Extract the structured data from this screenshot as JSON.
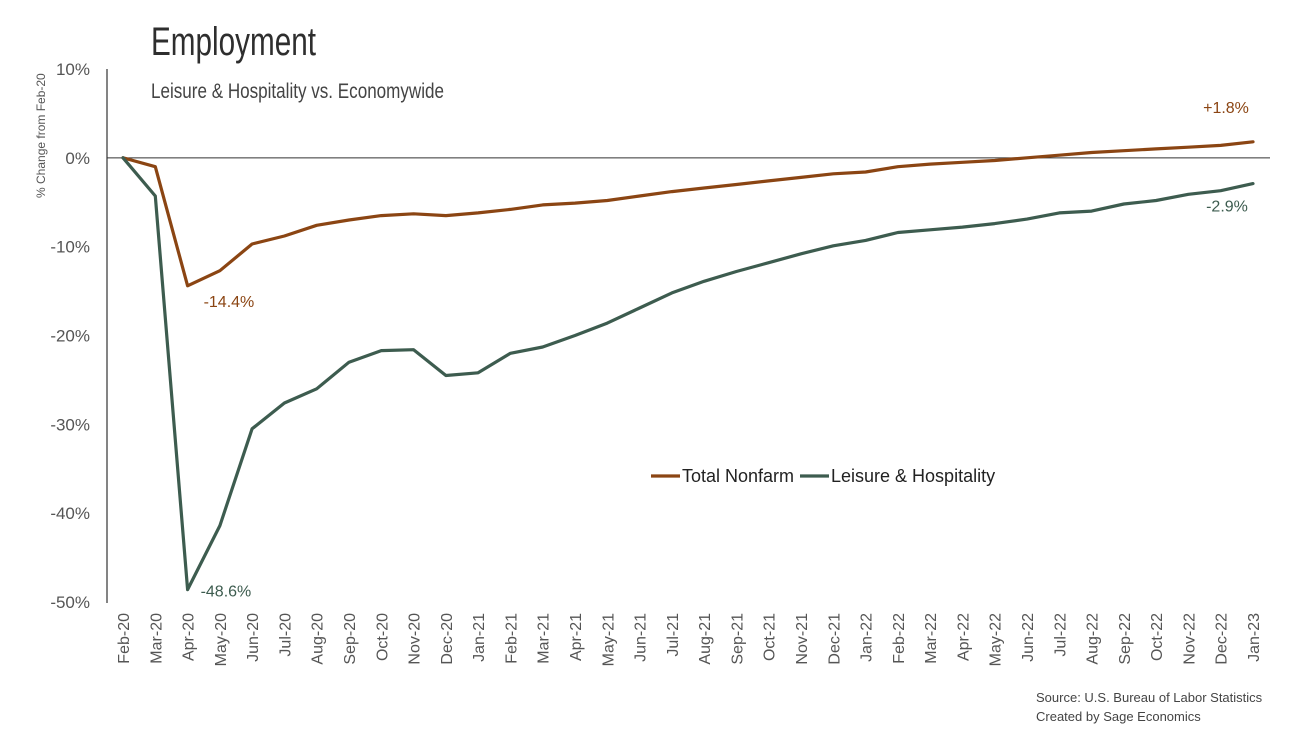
{
  "chart_data": {
    "type": "line",
    "title": "Employment",
    "subtitle": "Leisure & Hospitality vs. Economywide",
    "ylabel": "% Change from Feb-20",
    "xlabel": "",
    "ylim": [
      -50,
      10
    ],
    "yticks": [
      10,
      0,
      -10,
      -20,
      -30,
      -40,
      -50
    ],
    "ytick_labels": [
      "10%",
      "0%",
      "-10%",
      "-20%",
      "-30%",
      "-40%",
      "-50%"
    ],
    "grid": false,
    "legend_position": "center-right",
    "categories": [
      "Feb-20",
      "Mar-20",
      "Apr-20",
      "May-20",
      "Jun-20",
      "Jul-20",
      "Aug-20",
      "Sep-20",
      "Oct-20",
      "Nov-20",
      "Dec-20",
      "Jan-21",
      "Feb-21",
      "Mar-21",
      "Apr-21",
      "May-21",
      "Jun-21",
      "Jul-21",
      "Aug-21",
      "Sep-21",
      "Oct-21",
      "Nov-21",
      "Dec-21",
      "Jan-22",
      "Feb-22",
      "Mar-22",
      "Apr-22",
      "May-22",
      "Jun-22",
      "Jul-22",
      "Aug-22",
      "Sep-22",
      "Oct-22",
      "Nov-22",
      "Dec-22",
      "Jan-23"
    ],
    "series": [
      {
        "name": "Total Nonfarm",
        "color": "#8b4513",
        "values": [
          0.0,
          -1.0,
          -14.4,
          -12.7,
          -9.7,
          -8.8,
          -7.6,
          -7.0,
          -6.5,
          -6.3,
          -6.5,
          -6.2,
          -5.8,
          -5.3,
          -5.1,
          -4.8,
          -4.3,
          -3.8,
          -3.4,
          -3.0,
          -2.6,
          -2.2,
          -1.8,
          -1.6,
          -1.0,
          -0.7,
          -0.5,
          -0.3,
          0.0,
          0.3,
          0.6,
          0.8,
          1.0,
          1.2,
          1.4,
          1.8
        ]
      },
      {
        "name": "Leisure & Hospitality",
        "color": "#3d5c4f",
        "values": [
          0.0,
          -4.3,
          -48.6,
          -41.4,
          -30.5,
          -27.6,
          -26.0,
          -23.0,
          -21.7,
          -21.6,
          -24.5,
          -24.2,
          -22.0,
          -21.3,
          -20.0,
          -18.6,
          -16.9,
          -15.2,
          -13.9,
          -12.8,
          -11.8,
          -10.8,
          -9.9,
          -9.3,
          -8.4,
          -8.1,
          -7.8,
          -7.4,
          -6.9,
          -6.2,
          -6.0,
          -5.2,
          -4.8,
          -4.1,
          -3.7,
          -2.9
        ]
      }
    ],
    "annotations": [
      {
        "text": "-14.4%",
        "series": 0,
        "index": 2,
        "color": "#8b4513"
      },
      {
        "text": "-48.6%",
        "series": 1,
        "index": 2,
        "color": "#3d5c4f"
      },
      {
        "text": "+1.8%",
        "series": 0,
        "index": 35,
        "color": "#8b4513"
      },
      {
        "text": "-2.9%",
        "series": 1,
        "index": 35,
        "color": "#3d5c4f"
      }
    ],
    "source_lines": [
      "Source: U.S. Bureau of Labor Statistics",
      "Created by Sage Economics"
    ]
  }
}
